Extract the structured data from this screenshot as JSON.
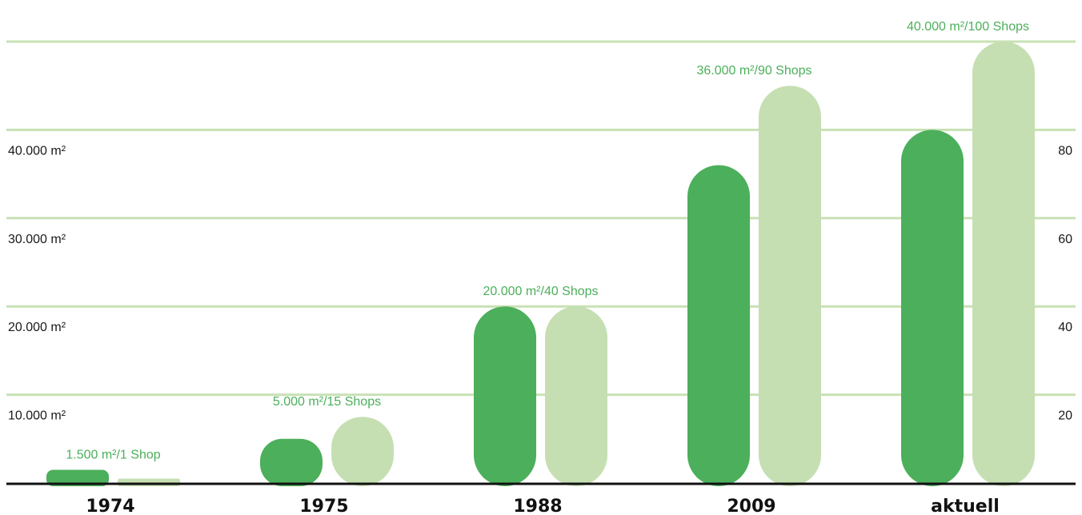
{
  "colors": {
    "area_bar": "#4caf5b",
    "shops_bar": "#c5dfb2",
    "grid": "#c8e1b5",
    "label": "#4caf5b",
    "baseline": "#111111"
  },
  "chart_data": {
    "type": "bar",
    "categories": [
      "1974",
      "1975",
      "1988",
      "2009",
      "aktuell"
    ],
    "series": [
      {
        "axis": "left",
        "values": [
          1500,
          5000,
          20000,
          36000,
          40000
        ]
      },
      {
        "axis": "right",
        "values": [
          1,
          15,
          40,
          90,
          100
        ]
      }
    ],
    "data_labels": [
      "1.500 m²/1 Shop",
      "5.000 m²/15 Shops",
      "20.000 m²/40 Shops",
      "36.000 m²/90 Shops",
      "40.000 m²/100 Shops"
    ],
    "left_axis": {
      "ylim": [
        0,
        50000
      ],
      "ticks": [
        10000,
        20000,
        30000,
        40000
      ],
      "tick_labels": [
        "10.000 m²",
        "20.000 m²",
        "30.000 m²",
        "40.000 m²"
      ]
    },
    "right_axis": {
      "ylim": [
        0,
        100
      ],
      "ticks": [
        20,
        40,
        60,
        80
      ],
      "tick_labels": [
        "20",
        "40",
        "60",
        "80"
      ]
    },
    "grid": true,
    "legend": "none"
  }
}
